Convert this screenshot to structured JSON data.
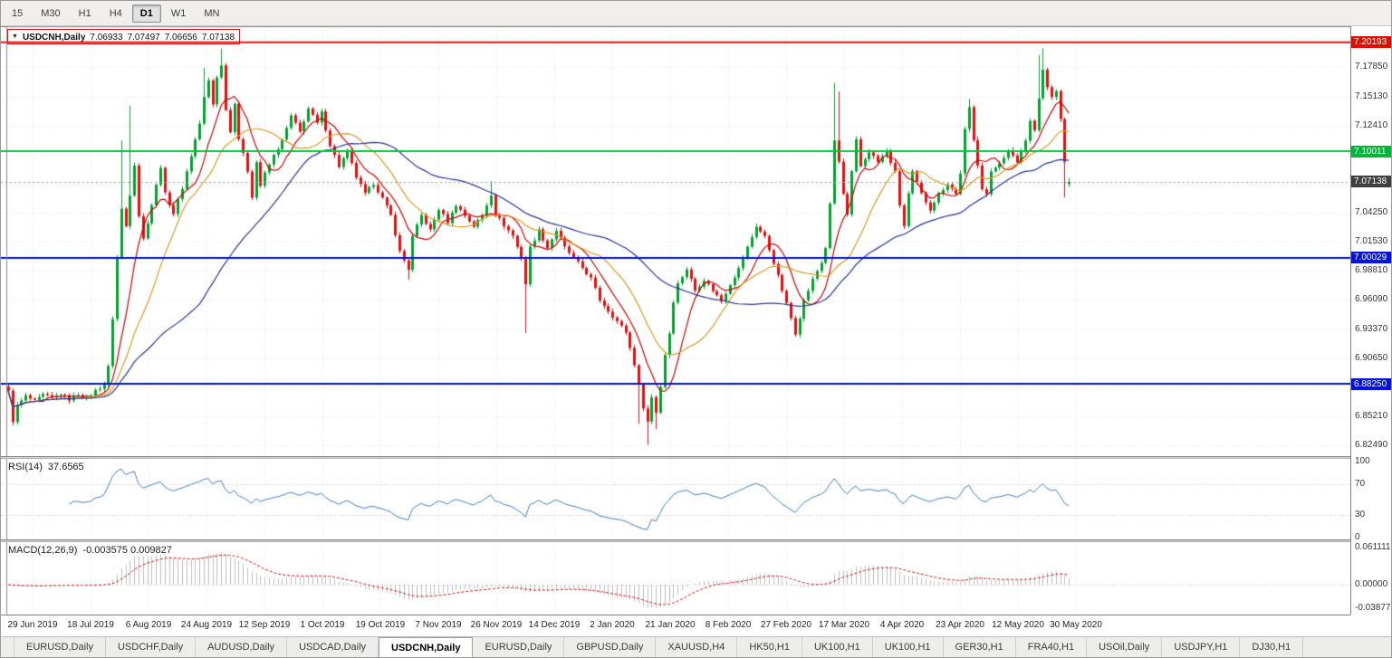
{
  "toolbar": {
    "timeframes": [
      {
        "label": "15",
        "active": false
      },
      {
        "label": "M30",
        "active": false
      },
      {
        "label": "H1",
        "active": false
      },
      {
        "label": "H4",
        "active": false
      },
      {
        "label": "D1",
        "active": true
      },
      {
        "label": "W1",
        "active": false
      },
      {
        "label": "MN",
        "active": false
      }
    ]
  },
  "chart": {
    "header": {
      "marker": "▼",
      "symbol": "USDCNH,Daily",
      "open": "7.06933",
      "high": "7.07497",
      "low": "7.06656",
      "close": "7.07138"
    }
  },
  "chart_data": {
    "type": "candlestick",
    "symbol": "USDCNH",
    "timeframe": "Daily",
    "ohlc_display": {
      "open": 7.06933,
      "high": 7.07497,
      "low": 7.06656,
      "close": 7.07138
    },
    "ylim": [
      6.8148,
      7.217
    ],
    "price_axis": {
      "ticks": [
        "7.17850",
        "7.15130",
        "7.12410",
        "7.04250",
        "7.01530",
        "6.98810",
        "6.96090",
        "6.93370",
        "6.90650",
        "6.85210",
        "6.82490"
      ],
      "grid": {
        "start": 7.2057,
        "step": 0.0272,
        "count": 15
      },
      "badges": [
        {
          "label": "7.20193",
          "price": 7.20193,
          "color": "#dd1000"
        },
        {
          "label": "7.10011",
          "price": 7.10011,
          "color": "#00b43c"
        },
        {
          "label": "7.07138",
          "price": 7.07138,
          "color": "#3f3f3f"
        },
        {
          "label": "7.00029",
          "price": 7.00029,
          "color": "#0012dd"
        },
        {
          "label": "6.88250",
          "price": 6.8825,
          "color": "#0012dd"
        }
      ]
    },
    "hlines": [
      {
        "price": 7.20193,
        "color": "#dd1000",
        "width": 2
      },
      {
        "price": 7.10011,
        "color": "#00c432",
        "width": 2
      },
      {
        "price": 7.00029,
        "color": "#0012dd",
        "width": 2
      },
      {
        "price": 6.8825,
        "color": "#0012dd",
        "width": 2
      }
    ],
    "current_price_line": {
      "price": 7.07138,
      "color": "#9a9a9a"
    },
    "x_tick_labels": [
      "29 Jun 2019",
      "18 Jul 2019",
      "6 Aug 2019",
      "24 Aug 2019",
      "12 Sep 2019",
      "1 Oct 2019",
      "19 Oct 2019",
      "7 Nov 2019",
      "26 Nov 2019",
      "14 Dec 2019",
      "2 Jan 2020",
      "21 Jan 2020",
      "8 Feb 2020",
      "27 Feb 2020",
      "17 Mar 2020",
      "4 Apr 2020",
      "23 Apr 2020",
      "12 May 2020",
      "30 May 2020"
    ],
    "bars_total": 245,
    "candle_colors": {
      "up": "#00a32e",
      "down": "#e60e0e"
    },
    "close_anchors": [
      [
        0,
        6.876
      ],
      [
        1,
        6.848
      ],
      [
        2,
        6.862
      ],
      [
        4,
        6.871
      ],
      [
        6,
        6.866
      ],
      [
        8,
        6.872
      ],
      [
        10,
        6.869
      ],
      [
        12,
        6.873
      ],
      [
        14,
        6.868
      ],
      [
        16,
        6.873
      ],
      [
        18,
        6.869
      ],
      [
        20,
        6.876
      ],
      [
        22,
        6.882
      ],
      [
        23,
        6.898
      ],
      [
        24,
        6.944
      ],
      [
        25,
        7.0
      ],
      [
        26,
        7.046
      ],
      [
        27,
        7.03
      ],
      [
        28,
        7.06
      ],
      [
        29,
        7.088
      ],
      [
        30,
        7.04
      ],
      [
        31,
        7.018
      ],
      [
        33,
        7.05
      ],
      [
        35,
        7.086
      ],
      [
        36,
        7.06
      ],
      [
        38,
        7.042
      ],
      [
        40,
        7.066
      ],
      [
        42,
        7.096
      ],
      [
        44,
        7.126
      ],
      [
        45,
        7.15
      ],
      [
        46,
        7.166
      ],
      [
        47,
        7.144
      ],
      [
        48,
        7.17
      ],
      [
        49,
        7.18
      ],
      [
        50,
        7.14
      ],
      [
        51,
        7.118
      ],
      [
        52,
        7.146
      ],
      [
        53,
        7.112
      ],
      [
        55,
        7.082
      ],
      [
        56,
        7.058
      ],
      [
        57,
        7.09
      ],
      [
        58,
        7.068
      ],
      [
        59,
        7.079
      ],
      [
        61,
        7.096
      ],
      [
        63,
        7.11
      ],
      [
        65,
        7.133
      ],
      [
        67,
        7.118
      ],
      [
        69,
        7.14
      ],
      [
        71,
        7.126
      ],
      [
        72,
        7.136
      ],
      [
        74,
        7.106
      ],
      [
        76,
        7.086
      ],
      [
        78,
        7.1
      ],
      [
        80,
        7.076
      ],
      [
        82,
        7.06
      ],
      [
        84,
        7.07
      ],
      [
        86,
        7.056
      ],
      [
        88,
        7.04
      ],
      [
        90,
        7.006
      ],
      [
        92,
        6.99
      ],
      [
        93,
        7.02
      ],
      [
        95,
        7.04
      ],
      [
        97,
        7.026
      ],
      [
        99,
        7.046
      ],
      [
        101,
        7.034
      ],
      [
        103,
        7.05
      ],
      [
        105,
        7.04
      ],
      [
        107,
        7.03
      ],
      [
        109,
        7.04
      ],
      [
        111,
        7.06
      ],
      [
        112,
        7.042
      ],
      [
        114,
        7.031
      ],
      [
        116,
        7.021
      ],
      [
        118,
        7.0
      ],
      [
        119,
        6.976
      ],
      [
        120,
        7.01
      ],
      [
        122,
        7.026
      ],
      [
        124,
        7.01
      ],
      [
        126,
        7.026
      ],
      [
        128,
        7.01
      ],
      [
        130,
        7.0
      ],
      [
        132,
        6.991
      ],
      [
        134,
        6.981
      ],
      [
        136,
        6.961
      ],
      [
        138,
        6.951
      ],
      [
        140,
        6.941
      ],
      [
        142,
        6.931
      ],
      [
        144,
        6.901
      ],
      [
        145,
        6.881
      ],
      [
        146,
        6.861
      ],
      [
        147,
        6.847
      ],
      [
        148,
        6.87
      ],
      [
        149,
        6.856
      ],
      [
        150,
        6.88
      ],
      [
        151,
        6.91
      ],
      [
        152,
        6.93
      ],
      [
        153,
        6.96
      ],
      [
        154,
        6.976
      ],
      [
        156,
        6.99
      ],
      [
        158,
        6.97
      ],
      [
        160,
        6.98
      ],
      [
        162,
        6.97
      ],
      [
        164,
        6.96
      ],
      [
        166,
        6.976
      ],
      [
        168,
        6.99
      ],
      [
        170,
        7.01
      ],
      [
        172,
        7.03
      ],
      [
        174,
        7.02
      ],
      [
        176,
        6.996
      ],
      [
        178,
        6.97
      ],
      [
        180,
        6.944
      ],
      [
        181,
        6.93
      ],
      [
        183,
        6.96
      ],
      [
        185,
        6.98
      ],
      [
        187,
        6.996
      ],
      [
        188,
        7.01
      ],
      [
        189,
        7.05
      ],
      [
        190,
        7.11
      ],
      [
        191,
        7.09
      ],
      [
        192,
        7.06
      ],
      [
        193,
        7.04
      ],
      [
        194,
        7.08
      ],
      [
        195,
        7.11
      ],
      [
        196,
        7.086
      ],
      [
        198,
        7.1
      ],
      [
        200,
        7.09
      ],
      [
        202,
        7.1
      ],
      [
        204,
        7.08
      ],
      [
        205,
        7.05
      ],
      [
        206,
        7.03
      ],
      [
        207,
        7.06
      ],
      [
        208,
        7.08
      ],
      [
        210,
        7.06
      ],
      [
        212,
        7.046
      ],
      [
        214,
        7.06
      ],
      [
        216,
        7.07
      ],
      [
        218,
        7.06
      ],
      [
        219,
        7.08
      ],
      [
        220,
        7.12
      ],
      [
        221,
        7.14
      ],
      [
        222,
        7.11
      ],
      [
        224,
        7.066
      ],
      [
        225,
        7.06
      ],
      [
        226,
        7.08
      ],
      [
        228,
        7.09
      ],
      [
        230,
        7.1
      ],
      [
        232,
        7.09
      ],
      [
        234,
        7.11
      ],
      [
        235,
        7.13
      ],
      [
        236,
        7.12
      ],
      [
        237,
        7.15
      ],
      [
        238,
        7.176
      ],
      [
        239,
        7.16
      ],
      [
        240,
        7.15
      ],
      [
        241,
        7.156
      ],
      [
        242,
        7.13
      ],
      [
        243,
        7.09
      ],
      [
        244,
        7.07138
      ]
    ],
    "wick_overrides": [
      [
        26,
        7.11,
        null
      ],
      [
        28,
        7.143,
        null
      ],
      [
        45,
        7.178,
        null
      ],
      [
        49,
        7.1963,
        null
      ],
      [
        92,
        null,
        6.98
      ],
      [
        111,
        7.072,
        null
      ],
      [
        119,
        null,
        6.93
      ],
      [
        145,
        null,
        6.845
      ],
      [
        147,
        null,
        6.8255
      ],
      [
        149,
        null,
        6.84
      ],
      [
        190,
        7.164,
        null
      ],
      [
        191,
        7.156,
        null
      ],
      [
        221,
        7.149,
        null
      ],
      [
        237,
        7.19,
        null
      ],
      [
        238,
        7.1965,
        null
      ],
      [
        243,
        null,
        7.057
      ]
    ],
    "moving_averages": [
      {
        "period": 8,
        "color": "#cc0000"
      },
      {
        "period": 17,
        "color": "#d89a20"
      },
      {
        "period": 45,
        "color": "#283593"
      }
    ],
    "rsi": {
      "label": "RSI(14)",
      "value_display": "37.6565",
      "period": 14,
      "axis": [
        100,
        70,
        30,
        0
      ],
      "levels": [
        70,
        30
      ],
      "line_color": "#3f7cc0"
    },
    "macd": {
      "label": "MACD(12,26,9)",
      "values_display": "-0.003575 0.009827",
      "macd_value": -0.003575,
      "signal_value": 0.009827,
      "ylim": [
        -0.0477,
        0.0686
      ],
      "axis_labels": [
        "0.0611119",
        "0.00000",
        "-0.038777"
      ],
      "hist_color": "#bcbcbc",
      "signal_color": "#cc1111"
    }
  },
  "tabs": [
    {
      "label": "EURUSD,Daily",
      "active": false
    },
    {
      "label": "USDCHF,Daily",
      "active": false
    },
    {
      "label": "AUDUSD,Daily",
      "active": false
    },
    {
      "label": "USDCAD,Daily",
      "active": false
    },
    {
      "label": "USDCNH,Daily",
      "active": true
    },
    {
      "label": "EURUSD,Daily",
      "active": false
    },
    {
      "label": "GBPUSD,Daily",
      "active": false
    },
    {
      "label": "XAUUSD,H4",
      "active": false
    },
    {
      "label": "HK50,H1",
      "active": false
    },
    {
      "label": "UK100,H1",
      "active": false
    },
    {
      "label": "UK100,H1",
      "active": false
    },
    {
      "label": "GER30,H1",
      "active": false
    },
    {
      "label": "FRA40,H1",
      "active": false
    },
    {
      "label": "USOil,Daily",
      "active": false
    },
    {
      "label": "USDJPY,H1",
      "active": false
    },
    {
      "label": "DJ30,H1",
      "active": false
    }
  ]
}
